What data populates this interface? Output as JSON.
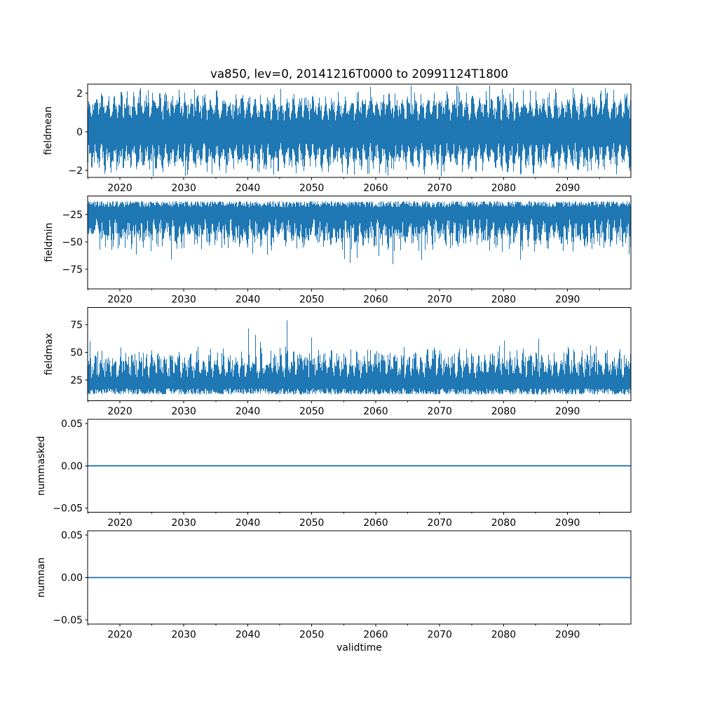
{
  "chart_data": {
    "type": "line",
    "title": "va850, lev=0, 20141216T0000 to 20991124T1800",
    "xlabel": "validtime",
    "background": "#ffffff",
    "line_color": "#1f77b4",
    "axis_color": "#000000",
    "x_axis": {
      "xlim": [
        2014.96,
        2099.9
      ],
      "major_ticks": [
        2020,
        2030,
        2040,
        2050,
        2060,
        2070,
        2080,
        2090
      ],
      "minor_tick_step": 5,
      "tick_labels_on_every_subplot": true
    },
    "subplots": [
      {
        "ylabel": "fieldmean",
        "yticks": [
          2,
          0,
          -2
        ],
        "ytick_format": "int",
        "ylim": [
          -2.36,
          2.47
        ],
        "series": {
          "kind": "symmetric-noise",
          "seed": 7,
          "approx_mean": 0,
          "dense_range": [
            -1.8,
            1.8
          ],
          "extreme_range": [
            -2.3,
            2.4
          ],
          "cycle": "annual high-frequency oscillation"
        }
      },
      {
        "ylabel": "fieldmin",
        "yticks": [
          -25,
          -50,
          -75
        ],
        "ytick_format": "int",
        "ylim": [
          -93,
          -8
        ],
        "series": {
          "kind": "spikes-down",
          "seed": 13,
          "dense_range": [
            -60,
            -13
          ],
          "extreme_range": [
            -89,
            -12
          ],
          "cycle": "annual high-frequency oscillation with deep downward spikes"
        }
      },
      {
        "ylabel": "fieldmax",
        "yticks": [
          75,
          50,
          25
        ],
        "ytick_format": "int",
        "ylim": [
          6.4,
          90.4
        ],
        "series": {
          "kind": "spikes-up",
          "seed": 29,
          "dense_range": [
            12,
            55
          ],
          "extreme_range": [
            11,
            88
          ],
          "cycle": "annual high-frequency oscillation with tall upward spikes"
        }
      },
      {
        "ylabel": "nummasked",
        "yticks": [
          0.05,
          0,
          -0.05
        ],
        "ytick_format": "2dp",
        "ylim": [
          -0.055,
          0.055
        ],
        "series": {
          "kind": "constant",
          "value": 0
        }
      },
      {
        "ylabel": "numnan",
        "yticks": [
          0.05,
          0,
          -0.05
        ],
        "ytick_format": "2dp",
        "ylim": [
          -0.055,
          0.055
        ],
        "series": {
          "kind": "constant",
          "value": 0
        }
      }
    ]
  }
}
